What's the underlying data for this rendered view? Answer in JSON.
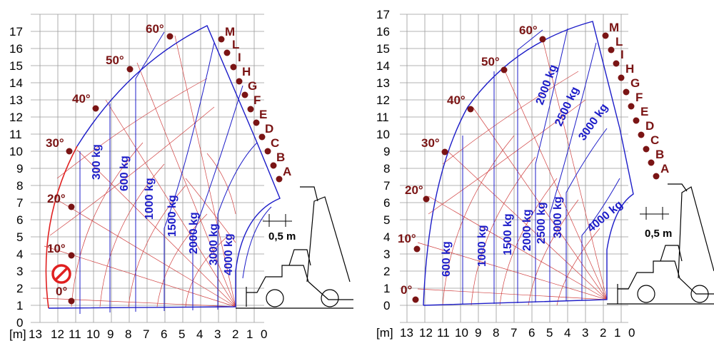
{
  "charts": [
    {
      "unit_label": "[m]",
      "x_ticks": [
        "13",
        "12",
        "11",
        "10",
        "9",
        "8",
        "7",
        "6",
        "5",
        "4",
        "3",
        "2",
        "1",
        "0"
      ],
      "y_ticks": [
        "0",
        "1",
        "2",
        "3",
        "4",
        "5",
        "6",
        "7",
        "8",
        "9",
        "10",
        "11",
        "12",
        "13",
        "14",
        "15",
        "16",
        "17"
      ],
      "angles": [
        "0°",
        "10°",
        "20°",
        "30°",
        "40°",
        "50°",
        "60°"
      ],
      "letters": [
        "M",
        "L",
        "I",
        "H",
        "G",
        "F",
        "E",
        "D",
        "C",
        "B",
        "A"
      ],
      "loads": [
        "300 kg",
        "600 kg",
        "1000 kg",
        "1500 kg",
        "2000 kg",
        "3000 kg",
        "4000 kg"
      ],
      "extension_label": "0,5 m",
      "restriction_icon": "no-entry-icon"
    },
    {
      "unit_label": "[m]",
      "x_ticks": [
        "13",
        "12",
        "11",
        "10",
        "9",
        "8",
        "7",
        "6",
        "5",
        "4",
        "3",
        "2",
        "1",
        "0"
      ],
      "y_ticks": [
        "0",
        "1",
        "2",
        "3",
        "4",
        "5",
        "6",
        "7",
        "8",
        "9",
        "10",
        "11",
        "12",
        "13",
        "14",
        "15",
        "16",
        "17"
      ],
      "angles": [
        "0°",
        "10°",
        "20°",
        "30°",
        "40°",
        "50°",
        "60°"
      ],
      "letters": [
        "M",
        "L",
        "I",
        "H",
        "G",
        "F",
        "E",
        "D",
        "C",
        "B",
        "A"
      ],
      "loads": [
        "600 kg",
        "1000 kg",
        "1500 kg",
        "2000 kg",
        "2500 kg",
        "3000 kg",
        "2000 kg",
        "2500 kg",
        "3000 kg",
        "4000 kg"
      ],
      "extension_label": "0,5 m"
    }
  ],
  "colors": {
    "grid": "#9a9a9a",
    "envelope": "#1c1cc8",
    "radial": "#d04040",
    "marker": "#7a1414",
    "restricted_edge": "#e02020"
  }
}
